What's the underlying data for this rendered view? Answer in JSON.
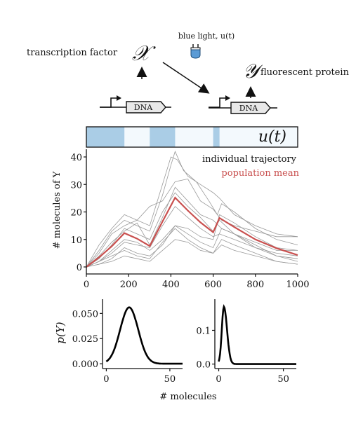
{
  "schematic": {
    "tf_label": "transcription factor",
    "tf_symbol": "𝒳",
    "light_label": "blue light, u(t)",
    "fp_symbol": "𝒴",
    "fp_label": "fluorescent protein",
    "dna_left": "DNA",
    "dna_right": "DNA"
  },
  "colors": {
    "light_on": "#aacde6",
    "light_off": "#f3f9fd",
    "mean": "#c9504f",
    "trajectory": "#9a9a9a",
    "bulb": "#5b9bd5"
  },
  "chart_data": [
    {
      "type": "line",
      "input_label": "u(t)",
      "input_on_intervals": [
        [
          0,
          180
        ],
        [
          300,
          420
        ],
        [
          600,
          630
        ]
      ],
      "x": [
        0,
        1000
      ],
      "xlim": [
        0,
        1000
      ],
      "ylim": [
        0,
        42
      ],
      "xticks": [
        "0",
        "200",
        "400",
        "600",
        "800",
        "1000"
      ],
      "yticks": [
        "0",
        "10",
        "20",
        "30",
        "40"
      ],
      "ylabel": "# molecules of Y",
      "legend": {
        "trajectory": "individual trajectory",
        "mean": "population mean"
      },
      "series": [
        {
          "name": "population mean",
          "points": [
            [
              0,
              0
            ],
            [
              60,
              3.5
            ],
            [
              120,
              7.5
            ],
            [
              180,
              12.3
            ],
            [
              240,
              10.3
            ],
            [
              300,
              7.6
            ],
            [
              360,
              16.5
            ],
            [
              420,
              25.2
            ],
            [
              480,
              20.5
            ],
            [
              540,
              16.2
            ],
            [
              600,
              12.6
            ],
            [
              630,
              17.8
            ],
            [
              700,
              14.5
            ],
            [
              800,
              10.0
            ],
            [
              900,
              6.8
            ],
            [
              1000,
              4.3
            ]
          ]
        },
        {
          "name": "individual trajectory",
          "points": [
            [
              0,
              0
            ],
            [
              60,
              6
            ],
            [
              120,
              13
            ],
            [
              180,
              17
            ],
            [
              240,
              15
            ],
            [
              300,
              13
            ],
            [
              360,
              26
            ],
            [
              400,
              37
            ],
            [
              420,
              42
            ],
            [
              460,
              35
            ],
            [
              520,
              31
            ],
            [
              580,
              24
            ],
            [
              620,
              19
            ],
            [
              640,
              23
            ],
            [
              700,
              20
            ],
            [
              800,
              14
            ],
            [
              900,
              10
            ],
            [
              1000,
              8
            ]
          ]
        },
        {
          "name": "individual trajectory",
          "points": [
            [
              0,
              0
            ],
            [
              60,
              8
            ],
            [
              120,
              14
            ],
            [
              180,
              19
            ],
            [
              240,
              17
            ],
            [
              300,
              15
            ],
            [
              360,
              30
            ],
            [
              400,
              40
            ],
            [
              430,
              39
            ],
            [
              480,
              33
            ],
            [
              540,
              30
            ],
            [
              600,
              27
            ],
            [
              630,
              25
            ],
            [
              700,
              19
            ],
            [
              800,
              15
            ],
            [
              900,
              12
            ],
            [
              1000,
              11
            ]
          ]
        },
        {
          "name": "individual trajectory",
          "points": [
            [
              0,
              0
            ],
            [
              60,
              5
            ],
            [
              120,
              12
            ],
            [
              180,
              15
            ],
            [
              240,
              17
            ],
            [
              300,
              22
            ],
            [
              360,
              24
            ],
            [
              420,
              31
            ],
            [
              480,
              32
            ],
            [
              540,
              24
            ],
            [
              600,
              21
            ],
            [
              640,
              17
            ],
            [
              700,
              15
            ],
            [
              800,
              13
            ],
            [
              900,
              11
            ],
            [
              1000,
              11
            ]
          ]
        },
        {
          "name": "individual trajectory",
          "points": [
            [
              0,
              0
            ],
            [
              60,
              4
            ],
            [
              120,
              9
            ],
            [
              180,
              13
            ],
            [
              240,
              16
            ],
            [
              300,
              8
            ],
            [
              360,
              18
            ],
            [
              420,
              29
            ],
            [
              480,
              24
            ],
            [
              540,
              19
            ],
            [
              600,
              17
            ],
            [
              640,
              14
            ],
            [
              700,
              12
            ],
            [
              800,
              9
            ],
            [
              900,
              6
            ],
            [
              1000,
              6
            ]
          ]
        },
        {
          "name": "individual trajectory",
          "points": [
            [
              0,
              0
            ],
            [
              60,
              2
            ],
            [
              120,
              6
            ],
            [
              180,
              10
            ],
            [
              240,
              9
            ],
            [
              300,
              6
            ],
            [
              360,
              10
            ],
            [
              420,
              15
            ],
            [
              480,
              14
            ],
            [
              540,
              11
            ],
            [
              600,
              10
            ],
            [
              630,
              19
            ],
            [
              700,
              16
            ],
            [
              800,
              11
            ],
            [
              900,
              7
            ],
            [
              1000,
              6
            ]
          ]
        },
        {
          "name": "individual trajectory",
          "points": [
            [
              0,
              0
            ],
            [
              60,
              1
            ],
            [
              120,
              3
            ],
            [
              180,
              7
            ],
            [
              240,
              5
            ],
            [
              300,
              4
            ],
            [
              360,
              8
            ],
            [
              420,
              15
            ],
            [
              480,
              12
            ],
            [
              540,
              9
            ],
            [
              600,
              7
            ],
            [
              640,
              14
            ],
            [
              700,
              12
            ],
            [
              800,
              7
            ],
            [
              900,
              4
            ],
            [
              1000,
              3
            ]
          ]
        },
        {
          "name": "individual trajectory",
          "points": [
            [
              0,
              0
            ],
            [
              60,
              1
            ],
            [
              120,
              2
            ],
            [
              180,
              4
            ],
            [
              240,
              3
            ],
            [
              300,
              2
            ],
            [
              360,
              6
            ],
            [
              420,
              10
            ],
            [
              480,
              9
            ],
            [
              540,
              6
            ],
            [
              600,
              5
            ],
            [
              640,
              10
            ],
            [
              700,
              8
            ],
            [
              800,
              5
            ],
            [
              900,
              2
            ],
            [
              1000,
              1
            ]
          ]
        },
        {
          "name": "individual trajectory",
          "points": [
            [
              0,
              0
            ],
            [
              60,
              3
            ],
            [
              120,
              8
            ],
            [
              180,
              14
            ],
            [
              240,
              12
            ],
            [
              300,
              10
            ],
            [
              360,
              20
            ],
            [
              420,
              27
            ],
            [
              480,
              22
            ],
            [
              540,
              18
            ],
            [
              600,
              13
            ],
            [
              630,
              17
            ],
            [
              700,
              12
            ],
            [
              800,
              8
            ],
            [
              900,
              4
            ],
            [
              1000,
              2
            ]
          ]
        },
        {
          "name": "individual trajectory",
          "points": [
            [
              0,
              0
            ],
            [
              60,
              2
            ],
            [
              120,
              5
            ],
            [
              180,
              9
            ],
            [
              240,
              8
            ],
            [
              300,
              7
            ],
            [
              360,
              15
            ],
            [
              420,
              22
            ],
            [
              480,
              18
            ],
            [
              540,
              14
            ],
            [
              600,
              11
            ],
            [
              630,
              12
            ],
            [
              700,
              10
            ],
            [
              800,
              7
            ],
            [
              900,
              5
            ],
            [
              1000,
              4
            ]
          ]
        },
        {
          "name": "individual trajectory",
          "points": [
            [
              0,
              0
            ],
            [
              60,
              2
            ],
            [
              120,
              4
            ],
            [
              180,
              6
            ],
            [
              240,
              4
            ],
            [
              300,
              3
            ],
            [
              360,
              9
            ],
            [
              420,
              14
            ],
            [
              480,
              10
            ],
            [
              540,
              7
            ],
            [
              600,
              5
            ],
            [
              640,
              8
            ],
            [
              700,
              6
            ],
            [
              800,
              4
            ],
            [
              900,
              2
            ],
            [
              1000,
              1
            ]
          ]
        }
      ]
    },
    {
      "type": "line",
      "x": [
        0,
        60
      ],
      "xlim": [
        -3,
        60
      ],
      "ylim": [
        -0.002,
        0.06
      ],
      "xticks": [
        "0",
        "50"
      ],
      "yticks": [
        "0.000",
        "0.025",
        "0.050"
      ],
      "ylabel": "p(Y)",
      "xlabel": "# molecules",
      "distribution": {
        "mean": 18,
        "sd": 7.1,
        "peak": 0.056
      }
    },
    {
      "type": "line",
      "x": [
        0,
        60
      ],
      "xlim": [
        -3,
        60
      ],
      "ylim": [
        -0.005,
        0.18
      ],
      "xticks": [
        "0",
        "50"
      ],
      "yticks": [
        "0.0",
        "0.1"
      ],
      "distribution": {
        "mean": 4,
        "sd": 2.4,
        "peak": 0.17
      }
    }
  ]
}
